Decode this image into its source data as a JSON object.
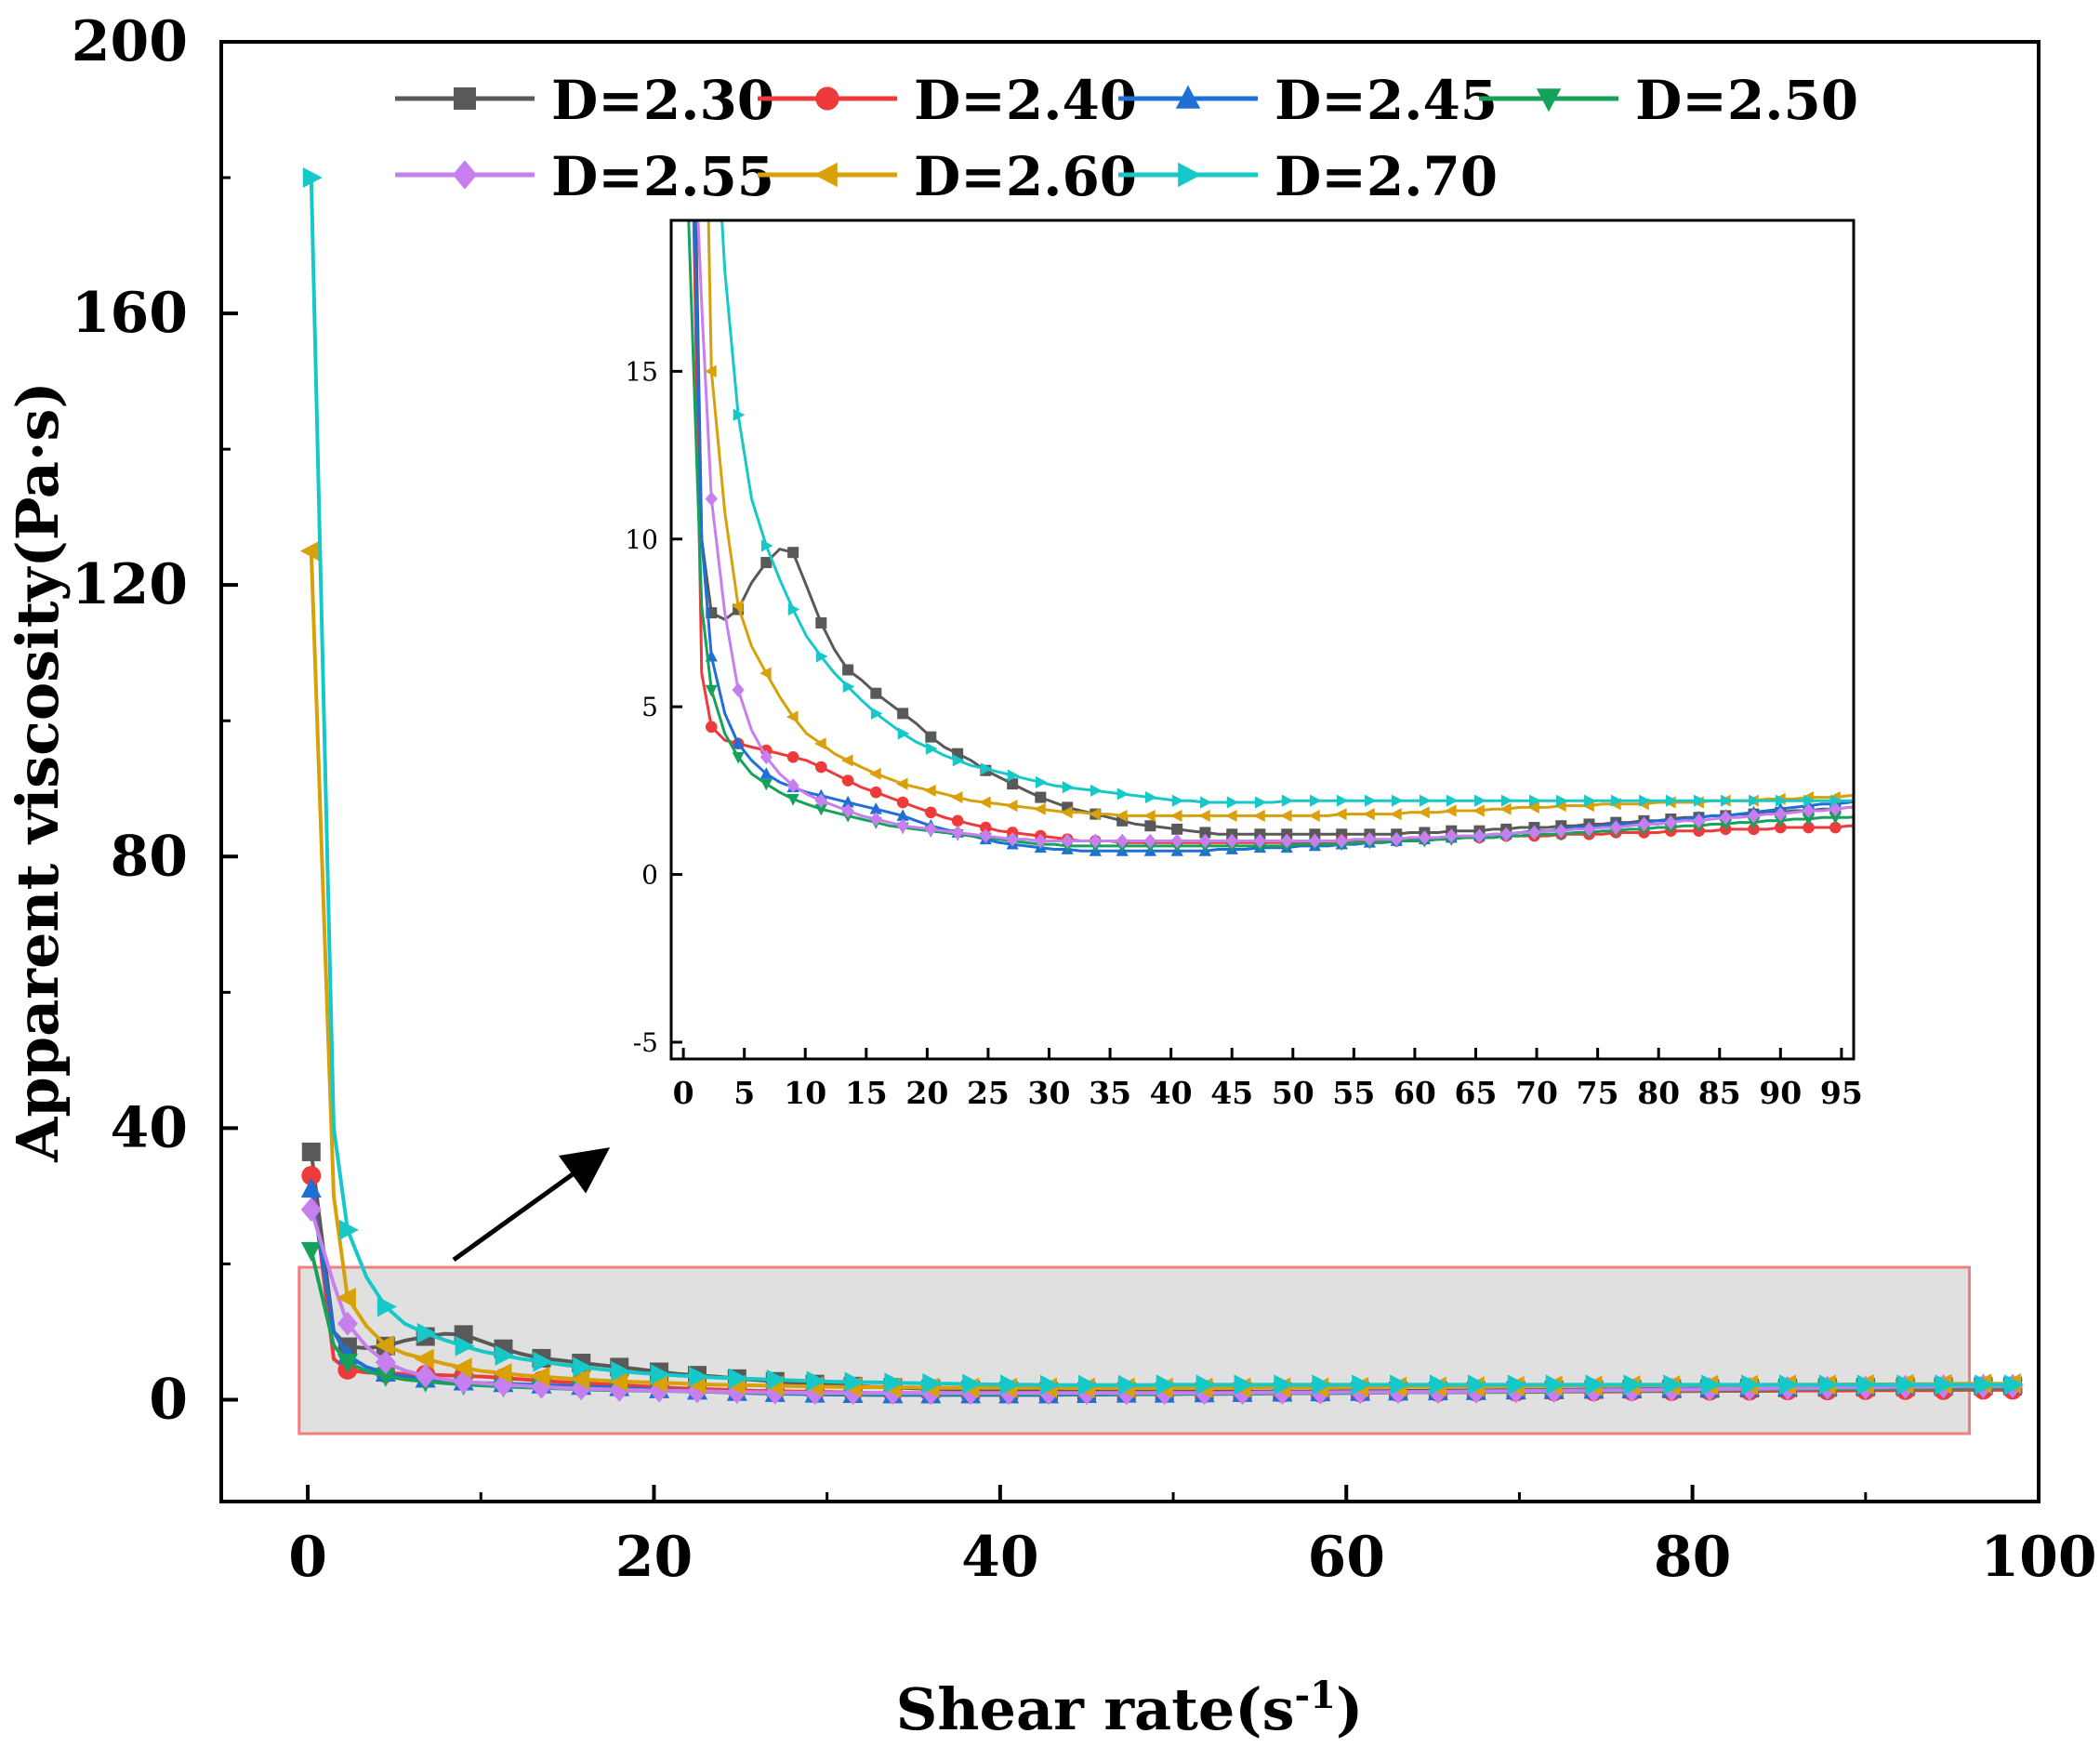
{
  "chart_data": {
    "type": "line",
    "title": "",
    "xlabel": "Shear rate(s",
    "xlabel_sup": "-1",
    "xlabel_end": ")",
    "ylabel": "Apparent viscosity(Pa·s)",
    "xlim": [
      -5,
      100
    ],
    "ylim": [
      -15,
      200
    ],
    "xticks": [
      "0",
      "20",
      "40",
      "60",
      "80",
      "100"
    ],
    "yticks": [
      "0",
      "40",
      "80",
      "120",
      "160",
      "200"
    ],
    "legend_position": "top",
    "zoom_box": {
      "x": [
        -0.5,
        96
      ],
      "y": [
        -5,
        19.5
      ]
    },
    "inset": {
      "xlim": [
        -1,
        96
      ],
      "ylim": [
        -5.5,
        19.5
      ],
      "xticks": [
        "0",
        "5",
        "10",
        "15",
        "20",
        "25",
        "30",
        "35",
        "40",
        "45",
        "50",
        "55",
        "60",
        "65",
        "70",
        "75",
        "80",
        "85",
        "90",
        "95"
      ],
      "yticks": [
        "-5",
        "0",
        "5",
        "10",
        "15"
      ]
    },
    "x": [
      0.2,
      1.5,
      2.3,
      3.4,
      4.5,
      5.6,
      6.8,
      7.9,
      9.0,
      10.1,
      11.3,
      12.4,
      13.5,
      14.6,
      15.8,
      16.9,
      18.0,
      19.1,
      20.3,
      21.4,
      22.5,
      23.6,
      24.8,
      25.9,
      27.0,
      28.1,
      29.3,
      30.4,
      31.5,
      32.6,
      33.8,
      34.9,
      36.0,
      37.1,
      38.3,
      39.4,
      40.5,
      41.6,
      42.8,
      43.9,
      45.0,
      46.1,
      47.3,
      48.4,
      49.5,
      50.6,
      51.8,
      52.9,
      54.0,
      55.1,
      56.3,
      57.4,
      58.5,
      59.6,
      60.8,
      61.9,
      63.0,
      64.1,
      65.3,
      66.4,
      67.5,
      68.6,
      69.8,
      70.9,
      72.0,
      73.1,
      74.3,
      75.4,
      76.5,
      77.6,
      78.8,
      79.9,
      81.0,
      82.1,
      83.3,
      84.4,
      85.5,
      86.6,
      87.8,
      88.9,
      90.0,
      91.1,
      92.3,
      93.4,
      94.5,
      95.6,
      96.8,
      97.9,
      98.5
    ],
    "series": [
      {
        "name": "D=2.30",
        "color": "#595959",
        "marker": "square",
        "values": [
          36.5,
          10.0,
          7.8,
          7.6,
          7.9,
          8.7,
          9.3,
          9.7,
          9.6,
          8.6,
          7.5,
          6.7,
          6.1,
          5.8,
          5.4,
          5.1,
          4.8,
          4.5,
          4.1,
          3.8,
          3.6,
          3.4,
          3.1,
          2.9,
          2.7,
          2.5,
          2.3,
          2.15,
          2.0,
          1.9,
          1.8,
          1.7,
          1.6,
          1.5,
          1.45,
          1.4,
          1.35,
          1.3,
          1.25,
          1.2,
          1.2,
          1.2,
          1.2,
          1.2,
          1.2,
          1.2,
          1.2,
          1.2,
          1.2,
          1.2,
          1.2,
          1.2,
          1.2,
          1.25,
          1.25,
          1.25,
          1.3,
          1.3,
          1.3,
          1.35,
          1.35,
          1.4,
          1.4,
          1.4,
          1.45,
          1.45,
          1.5,
          1.5,
          1.55,
          1.55,
          1.6,
          1.6,
          1.65,
          1.7,
          1.7,
          1.75,
          1.75,
          1.8,
          1.8,
          1.85,
          1.85,
          1.9,
          1.9,
          1.95,
          1.95,
          2.0,
          2.0,
          2.0,
          2.0
        ]
      },
      {
        "name": "D=2.40",
        "color": "#ee3a3a",
        "marker": "circle",
        "values": [
          33.0,
          6.0,
          4.4,
          4.0,
          3.9,
          3.8,
          3.7,
          3.6,
          3.5,
          3.4,
          3.2,
          3.0,
          2.8,
          2.6,
          2.45,
          2.3,
          2.15,
          2.0,
          1.85,
          1.7,
          1.6,
          1.5,
          1.4,
          1.3,
          1.25,
          1.2,
          1.15,
          1.1,
          1.05,
          1.0,
          1.0,
          1.0,
          0.95,
          0.95,
          0.95,
          0.95,
          0.95,
          0.95,
          0.95,
          0.95,
          0.95,
          0.95,
          0.95,
          0.95,
          0.95,
          0.95,
          0.95,
          0.95,
          1.0,
          1.0,
          1.0,
          1.0,
          1.0,
          1.05,
          1.05,
          1.05,
          1.1,
          1.1,
          1.1,
          1.1,
          1.15,
          1.15,
          1.15,
          1.15,
          1.2,
          1.2,
          1.2,
          1.2,
          1.25,
          1.25,
          1.25,
          1.25,
          1.3,
          1.3,
          1.3,
          1.3,
          1.35,
          1.35,
          1.35,
          1.35,
          1.4,
          1.4,
          1.4,
          1.4,
          1.4,
          1.45,
          1.45,
          1.45,
          1.45
        ]
      },
      {
        "name": "D=2.45",
        "color": "#1f6fd6",
        "marker": "triangle-up",
        "values": [
          31.0,
          10.0,
          6.5,
          4.8,
          3.9,
          3.4,
          3.0,
          2.75,
          2.6,
          2.45,
          2.35,
          2.25,
          2.15,
          2.05,
          1.95,
          1.85,
          1.75,
          1.6,
          1.45,
          1.35,
          1.25,
          1.15,
          1.05,
          0.95,
          0.9,
          0.85,
          0.8,
          0.75,
          0.75,
          0.7,
          0.7,
          0.7,
          0.7,
          0.7,
          0.7,
          0.7,
          0.7,
          0.7,
          0.7,
          0.75,
          0.75,
          0.75,
          0.8,
          0.8,
          0.8,
          0.85,
          0.85,
          0.85,
          0.9,
          0.9,
          0.95,
          0.95,
          1.0,
          1.0,
          1.05,
          1.05,
          1.1,
          1.1,
          1.15,
          1.2,
          1.2,
          1.25,
          1.3,
          1.3,
          1.35,
          1.4,
          1.4,
          1.45,
          1.5,
          1.5,
          1.55,
          1.6,
          1.6,
          1.65,
          1.7,
          1.75,
          1.75,
          1.8,
          1.85,
          1.9,
          1.95,
          2.0,
          2.05,
          2.1,
          2.1,
          2.15,
          2.2,
          2.2,
          2.2
        ]
      },
      {
        "name": "D=2.50",
        "color": "#17a25c",
        "marker": "triangle-down",
        "values": [
          22.0,
          8.0,
          5.5,
          4.2,
          3.5,
          3.0,
          2.7,
          2.45,
          2.25,
          2.1,
          1.95,
          1.85,
          1.75,
          1.65,
          1.55,
          1.45,
          1.4,
          1.35,
          1.3,
          1.25,
          1.2,
          1.15,
          1.1,
          1.05,
          1.0,
          0.95,
          0.9,
          0.9,
          0.85,
          0.85,
          0.85,
          0.85,
          0.85,
          0.85,
          0.85,
          0.85,
          0.85,
          0.85,
          0.85,
          0.85,
          0.85,
          0.85,
          0.85,
          0.85,
          0.85,
          0.9,
          0.9,
          0.9,
          0.9,
          0.95,
          0.95,
          0.95,
          1.0,
          1.0,
          1.0,
          1.05,
          1.05,
          1.1,
          1.1,
          1.1,
          1.15,
          1.15,
          1.2,
          1.2,
          1.2,
          1.25,
          1.25,
          1.3,
          1.3,
          1.35,
          1.35,
          1.4,
          1.4,
          1.45,
          1.45,
          1.5,
          1.5,
          1.55,
          1.55,
          1.6,
          1.6,
          1.65,
          1.65,
          1.7,
          1.7,
          1.7,
          1.75,
          1.75,
          1.75
        ]
      },
      {
        "name": "D=2.55",
        "color": "#c77ff0",
        "marker": "diamond",
        "values": [
          28.0,
          17.0,
          11.2,
          7.8,
          5.5,
          4.3,
          3.5,
          3.0,
          2.65,
          2.4,
          2.2,
          2.05,
          1.9,
          1.75,
          1.65,
          1.55,
          1.45,
          1.4,
          1.35,
          1.3,
          1.25,
          1.2,
          1.15,
          1.1,
          1.05,
          1.05,
          1.0,
          1.0,
          1.0,
          1.0,
          1.0,
          1.0,
          1.0,
          1.0,
          1.0,
          1.0,
          1.0,
          1.0,
          1.0,
          1.0,
          1.0,
          1.0,
          1.0,
          1.0,
          1.0,
          1.0,
          1.0,
          1.0,
          1.0,
          1.05,
          1.05,
          1.05,
          1.05,
          1.1,
          1.1,
          1.1,
          1.15,
          1.15,
          1.15,
          1.2,
          1.2,
          1.25,
          1.25,
          1.3,
          1.3,
          1.35,
          1.35,
          1.4,
          1.4,
          1.45,
          1.5,
          1.5,
          1.55,
          1.6,
          1.6,
          1.65,
          1.7,
          1.7,
          1.75,
          1.8,
          1.8,
          1.85,
          1.9,
          1.9,
          1.95,
          2.0,
          2.0,
          2.0,
          2.0
        ]
      },
      {
        "name": "D=2.60",
        "color": "#d8a009",
        "marker": "triangle-left",
        "values": [
          125.0,
          30.0,
          15.0,
          10.8,
          8.0,
          6.8,
          6.0,
          5.3,
          4.7,
          4.2,
          3.9,
          3.6,
          3.4,
          3.2,
          3.0,
          2.85,
          2.7,
          2.6,
          2.5,
          2.4,
          2.3,
          2.2,
          2.15,
          2.1,
          2.05,
          2.0,
          1.95,
          1.9,
          1.85,
          1.85,
          1.8,
          1.8,
          1.75,
          1.75,
          1.75,
          1.75,
          1.75,
          1.75,
          1.75,
          1.75,
          1.75,
          1.75,
          1.75,
          1.75,
          1.75,
          1.75,
          1.75,
          1.75,
          1.8,
          1.8,
          1.8,
          1.8,
          1.8,
          1.85,
          1.85,
          1.85,
          1.9,
          1.9,
          1.9,
          1.95,
          1.95,
          2.0,
          2.0,
          2.0,
          2.05,
          2.05,
          2.05,
          2.1,
          2.1,
          2.1,
          2.1,
          2.15,
          2.15,
          2.15,
          2.15,
          2.2,
          2.2,
          2.2,
          2.2,
          2.25,
          2.25,
          2.25,
          2.3,
          2.3,
          2.3,
          2.35,
          2.35,
          2.35,
          2.4
        ]
      },
      {
        "name": "D=2.70",
        "color": "#16c8c8",
        "marker": "triangle-right",
        "values": [
          180.0,
          40.0,
          25.0,
          18.0,
          13.7,
          11.2,
          9.8,
          8.8,
          7.9,
          7.1,
          6.5,
          6.0,
          5.6,
          5.2,
          4.8,
          4.5,
          4.2,
          3.95,
          3.75,
          3.55,
          3.4,
          3.25,
          3.15,
          3.05,
          2.95,
          2.85,
          2.75,
          2.65,
          2.6,
          2.55,
          2.5,
          2.45,
          2.4,
          2.35,
          2.3,
          2.25,
          2.2,
          2.2,
          2.15,
          2.15,
          2.15,
          2.15,
          2.15,
          2.15,
          2.2,
          2.2,
          2.2,
          2.2,
          2.2,
          2.2,
          2.2,
          2.2,
          2.2,
          2.2,
          2.2,
          2.2,
          2.2,
          2.2,
          2.2,
          2.2,
          2.2,
          2.2,
          2.2,
          2.2,
          2.2,
          2.2,
          2.2,
          2.2,
          2.2,
          2.2,
          2.2,
          2.2,
          2.2,
          2.2,
          2.2,
          2.2,
          2.2,
          2.2,
          2.2,
          2.2,
          2.2,
          2.2,
          2.2,
          2.2,
          2.2,
          2.2,
          2.2,
          2.2,
          2.2
        ]
      }
    ]
  }
}
